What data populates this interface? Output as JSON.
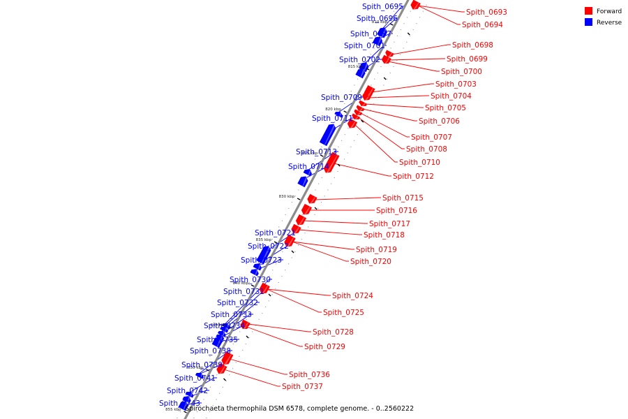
{
  "caption": "Spirochaeta thermophila DSM 6578, complete genome. - 0..2560222",
  "legend": [
    {
      "label": "Forward",
      "color": "#ff0000"
    },
    {
      "label": "Reverse",
      "color": "#0000ff"
    }
  ],
  "colors": {
    "forward": "#ff0000",
    "reverse": "#0000ff",
    "backbone": "#8c8c8c"
  },
  "ticks": [
    "810 kbp",
    "815 kbp",
    "820 kbp",
    "825 kbp",
    "830 kbp",
    "835 kbp",
    "840 kbp",
    "845 kbp",
    "850 kbp",
    "855 kbp"
  ],
  "genes": [
    {
      "name": "Spith_0693",
      "strand": "forward"
    },
    {
      "name": "Spith_0694",
      "strand": "forward"
    },
    {
      "name": "Spith_0695",
      "strand": "reverse"
    },
    {
      "name": "Spith_0696",
      "strand": "reverse"
    },
    {
      "name": "Spith_0697",
      "strand": "reverse"
    },
    {
      "name": "Spith_0698",
      "strand": "forward"
    },
    {
      "name": "Spith_0699",
      "strand": "forward"
    },
    {
      "name": "Spith_0700",
      "strand": "forward"
    },
    {
      "name": "Spith_0701",
      "strand": "reverse"
    },
    {
      "name": "Spith_0702",
      "strand": "reverse"
    },
    {
      "name": "Spith_0703",
      "strand": "forward"
    },
    {
      "name": "Spith_0704",
      "strand": "forward"
    },
    {
      "name": "Spith_0705",
      "strand": "forward"
    },
    {
      "name": "Spith_0706",
      "strand": "forward"
    },
    {
      "name": "Spith_0707",
      "strand": "forward"
    },
    {
      "name": "Spith_0708",
      "strand": "forward"
    },
    {
      "name": "Spith_0709",
      "strand": "reverse"
    },
    {
      "name": "Spith_0710",
      "strand": "forward"
    },
    {
      "name": "Spith_0711",
      "strand": "reverse"
    },
    {
      "name": "Spith_0712",
      "strand": "forward"
    },
    {
      "name": "Spith_0713",
      "strand": "reverse"
    },
    {
      "name": "Spith_0714",
      "strand": "reverse"
    },
    {
      "name": "Spith_0715",
      "strand": "forward"
    },
    {
      "name": "Spith_0716",
      "strand": "forward"
    },
    {
      "name": "Spith_0717",
      "strand": "forward"
    },
    {
      "name": "Spith_0718",
      "strand": "forward"
    },
    {
      "name": "Spith_0719",
      "strand": "forward"
    },
    {
      "name": "Spith_0720",
      "strand": "forward"
    },
    {
      "name": "Spith_0721",
      "strand": "reverse"
    },
    {
      "name": "Spith_0722",
      "strand": "reverse"
    },
    {
      "name": "Spith_0723",
      "strand": "reverse"
    },
    {
      "name": "Spith_0724",
      "strand": "forward"
    },
    {
      "name": "Spith_0725",
      "strand": "forward"
    },
    {
      "name": "Spith_0728",
      "strand": "forward"
    },
    {
      "name": "Spith_0729",
      "strand": "forward"
    },
    {
      "name": "Spith_0730",
      "strand": "reverse"
    },
    {
      "name": "Spith_0731",
      "strand": "reverse"
    },
    {
      "name": "Spith_0732",
      "strand": "reverse"
    },
    {
      "name": "Spith_0733",
      "strand": "reverse"
    },
    {
      "name": "Spith_0734",
      "strand": "reverse"
    },
    {
      "name": "Spith_0735",
      "strand": "reverse"
    },
    {
      "name": "Spith_0736",
      "strand": "forward"
    },
    {
      "name": "Spith_0737",
      "strand": "forward"
    },
    {
      "name": "Spith_0738",
      "strand": "reverse"
    },
    {
      "name": "Spith_0739",
      "strand": "reverse"
    },
    {
      "name": "Spith_0741",
      "strand": "reverse"
    },
    {
      "name": "Spith_0742",
      "strand": "reverse"
    },
    {
      "name": "Spith_0743",
      "strand": "reverse"
    }
  ]
}
